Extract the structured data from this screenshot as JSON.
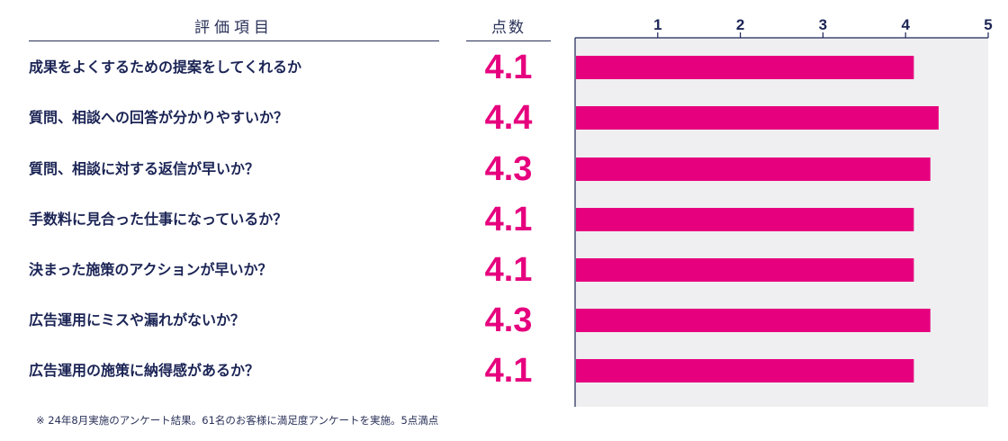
{
  "header": {
    "item_label": "評価項目",
    "score_label": "点数"
  },
  "note": "※ 24年8月実施のアンケート結果。61名のお客様に満足度アンケートを実施。5点満点",
  "colors": {
    "bar": "#e6007e",
    "score_text": "#e6007e",
    "plot_background": "#efeff1",
    "axis": "#1b2455",
    "text": "#1b2455"
  },
  "items": [
    {
      "label": "成果をよくするための提案をしてくれるか",
      "score": "4.1"
    },
    {
      "label": "質問、相談への回答が分かりやすいか？",
      "score": "4.4"
    },
    {
      "label": "質問、相談に対する返信が早いか？",
      "score": "4.3"
    },
    {
      "label": "手数料に見合った仕事になっているか？",
      "score": "4.1"
    },
    {
      "label": "決まった施策のアクションが早いか？",
      "score": "4.1"
    },
    {
      "label": "広告運用にミスや漏れがないか？",
      "score": "4.3"
    },
    {
      "label": "広告運用の施策に納得感があるか？",
      "score": "4.1"
    }
  ],
  "chart_data": {
    "type": "bar",
    "orientation": "horizontal",
    "categories": [
      "成果をよくするための提案をしてくれるか",
      "質問、相談への回答が分かりやすいか？",
      "質問、相談に対する返信が早いか？",
      "手数料に見合った仕事になっているか？",
      "決まった施策のアクションが早いか？",
      "広告運用にミスや漏れがないか？",
      "広告運用の施策に納得感があるか？"
    ],
    "values": [
      4.1,
      4.4,
      4.3,
      4.1,
      4.1,
      4.3,
      4.1
    ],
    "xlim": [
      0,
      5
    ],
    "x_ticks": [
      "1",
      "2",
      "3",
      "4",
      "5"
    ],
    "grid": false,
    "tick_position": "top"
  }
}
